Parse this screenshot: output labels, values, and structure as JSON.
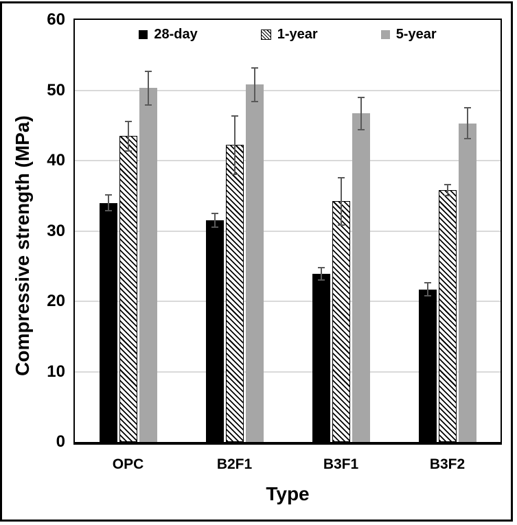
{
  "chart_data": {
    "type": "bar",
    "categories": [
      "OPC",
      "B2F1",
      "B3F1",
      "B3F2"
    ],
    "series": [
      {
        "name": "28-day",
        "fill": "black",
        "values": [
          34.0,
          31.5,
          23.9,
          21.7
        ],
        "errors": [
          1.2,
          1.1,
          1.0,
          1.0
        ]
      },
      {
        "name": "1-year",
        "fill": "hatch",
        "values": [
          43.5,
          42.2,
          34.2,
          35.8
        ],
        "errors": [
          2.2,
          4.2,
          3.5,
          0.9
        ]
      },
      {
        "name": "5-year",
        "fill": "gray",
        "values": [
          50.3,
          50.8,
          46.7,
          45.3
        ],
        "errors": [
          2.5,
          2.5,
          2.4,
          2.3
        ]
      }
    ],
    "title": "",
    "xlabel": "Type",
    "ylabel": "Compressive strength (MPa)",
    "ylim": [
      0,
      60
    ],
    "ytick_step": 10,
    "yticks": [
      0,
      10,
      20,
      30,
      40,
      50,
      60
    ],
    "grid": true,
    "legend_position": "top-inside"
  },
  "colors": {
    "bar_black": "#000000",
    "bar_gray": "#a6a6a6",
    "hatch_line": "#000000",
    "hatch_bg": "#ffffff",
    "error_bar": "#595959",
    "gridline": "#d9d9d9",
    "border": "#000000"
  }
}
